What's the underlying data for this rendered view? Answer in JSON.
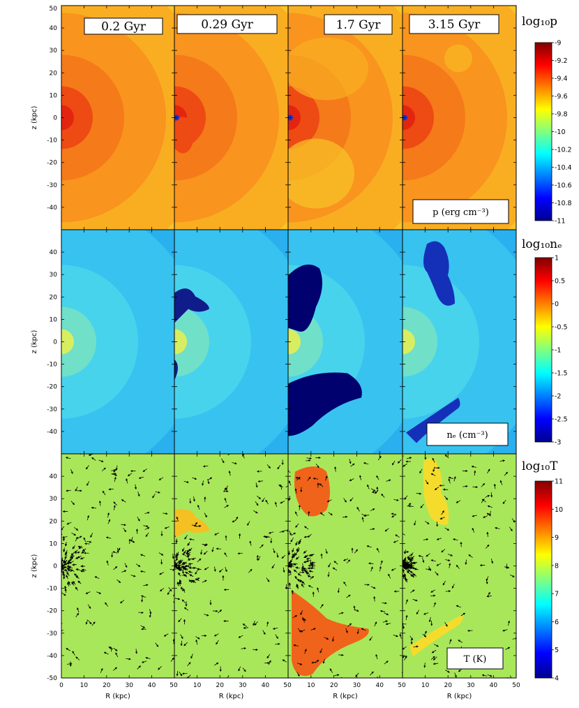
{
  "chart_data": {
    "type": "heatmap",
    "times": [
      "0.2 Gyr",
      "0.29 Gyr",
      "1.7 Gyr",
      "3.15 Gyr"
    ],
    "x_ticks": [
      "0",
      "10",
      "20",
      "30",
      "40",
      "50"
    ],
    "xlabel": "R (kpc)",
    "ylabel": "z (kpc)",
    "xlim": [
      0,
      50
    ],
    "ylim": [
      -50,
      50
    ],
    "rows": [
      {
        "quantity_label": "p (erg cm⁻³)",
        "colorbar": {
          "title": "log₁₀p",
          "ticks": [
            "-9",
            "-9.2",
            "-9.4",
            "-9.6",
            "-9.8",
            "-10",
            "-10.2",
            "-10.4",
            "-10.6",
            "-10.8",
            "-11"
          ],
          "range": [
            -11,
            -9
          ]
        },
        "y_ticks": [
          "50",
          "40",
          "30",
          "20",
          "10",
          "0",
          "-10",
          "-20",
          "-30",
          "-40"
        ]
      },
      {
        "quantity_label": "nₑ (cm⁻³)",
        "colorbar": {
          "title": "log₁₀nₑ",
          "ticks": [
            "1",
            "0.5",
            "0",
            "-0.5",
            "-1",
            "-1.5",
            "-2",
            "-2.5",
            "-3"
          ],
          "range": [
            -3,
            1
          ]
        },
        "y_ticks": [
          "40",
          "30",
          "20",
          "10",
          "0",
          "-10",
          "-20",
          "-30",
          "-40"
        ]
      },
      {
        "quantity_label": "T (K)",
        "colorbar": {
          "title": "log₁₀T",
          "ticks": [
            "11",
            "10",
            "9",
            "8",
            "7",
            "6",
            "5",
            "4"
          ],
          "range": [
            4,
            11
          ]
        },
        "y_ticks": [
          "40",
          "30",
          "20",
          "10",
          "0",
          "-10",
          "-20",
          "-30",
          "-40",
          "-50"
        ]
      }
    ]
  }
}
